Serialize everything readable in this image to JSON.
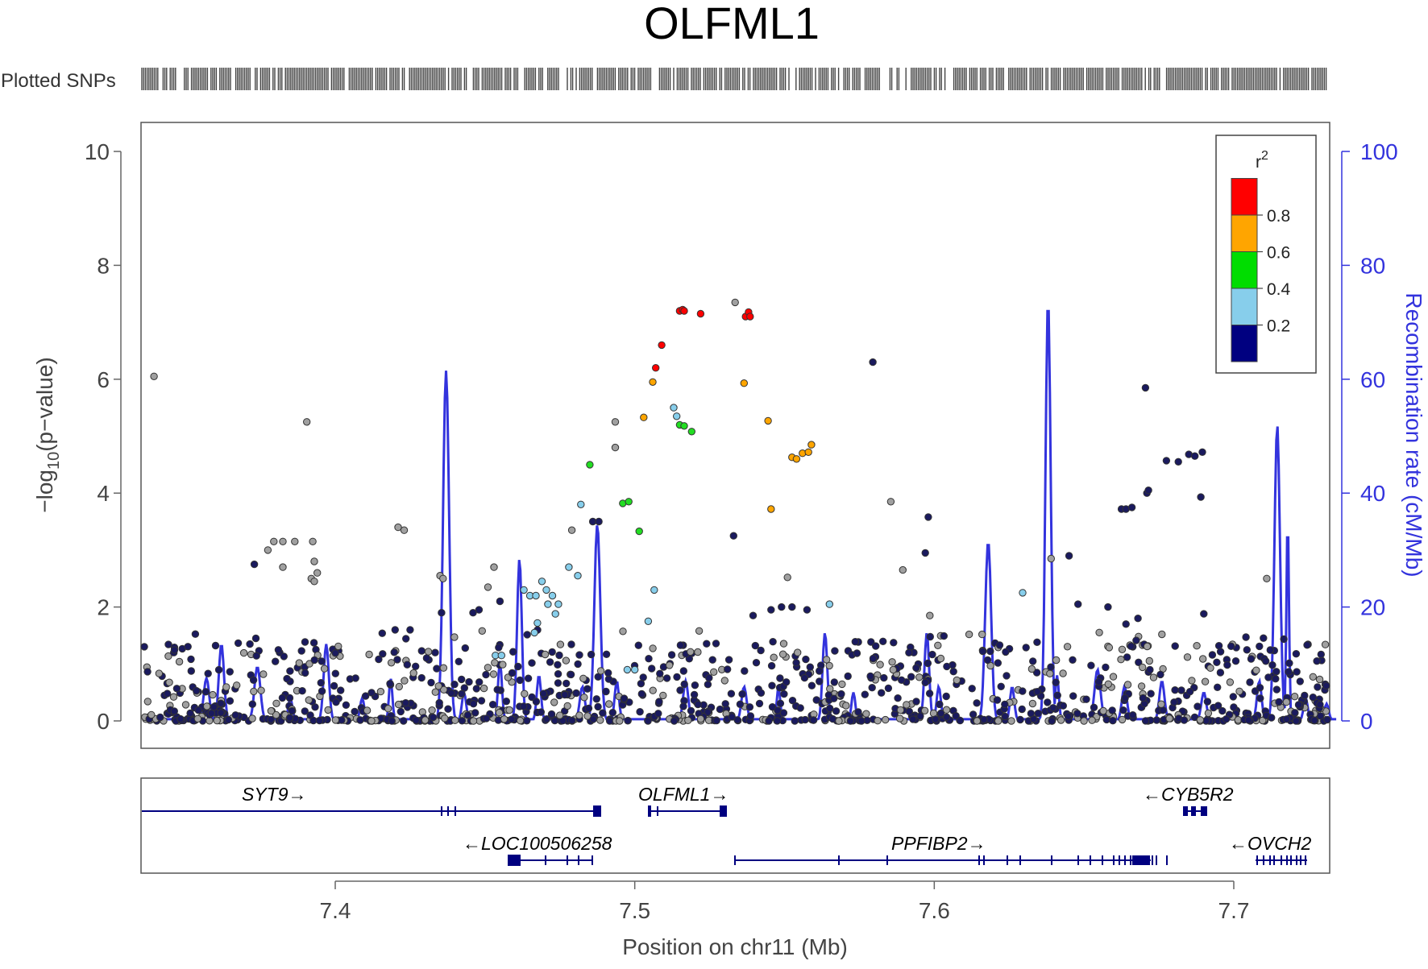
{
  "chart_data": {
    "type": "scatter",
    "title": "OLFML1",
    "snp_track_label": "Plotted SNPs",
    "xlabel": "Position on chr11 (Mb)",
    "ylabel_main": "−log",
    "ylabel_sub": "10",
    "ylabel_tail": "(p−value)",
    "y2label": "Recombination rate (cM/Mb)",
    "xlim": [
      7.335,
      7.735
    ],
    "ylim": [
      0,
      10.5
    ],
    "y2lim": [
      0,
      105
    ],
    "x_ticks": [
      {
        "v": 7.4,
        "label": "7.4"
      },
      {
        "v": 7.5,
        "label": "7.5"
      },
      {
        "v": 7.6,
        "label": "7.6"
      },
      {
        "v": 7.7,
        "label": "7.7"
      }
    ],
    "y_ticks": [
      {
        "v": 0,
        "label": "0"
      },
      {
        "v": 2,
        "label": "2"
      },
      {
        "v": 4,
        "label": "4"
      },
      {
        "v": 6,
        "label": "6"
      },
      {
        "v": 8,
        "label": "8"
      },
      {
        "v": 10,
        "label": "10"
      }
    ],
    "y2_ticks": [
      {
        "v": 0,
        "label": "0"
      },
      {
        "v": 20,
        "label": "20"
      },
      {
        "v": 40,
        "label": "40"
      },
      {
        "v": 60,
        "label": "60"
      },
      {
        "v": 80,
        "label": "80"
      },
      {
        "v": 100,
        "label": "100"
      }
    ],
    "legend": {
      "title": "r",
      "title_sup": "2",
      "placement": "top-right",
      "colors": [
        "#000080",
        "#87ceeb",
        "#00dd00",
        "#ffa500",
        "#ff0000"
      ],
      "labels": [
        "0.2",
        "0.4",
        "0.6",
        "0.8"
      ]
    },
    "r2_colors": {
      "red": "#ff0000",
      "orange": "#ffa500",
      "green": "#22dd22",
      "lightblue": "#87ceeb",
      "navy": "#1a1a5e",
      "gray": "#a0a0a0"
    },
    "recomb_color": "#3333dd",
    "gene_color": "#000080",
    "snps_highlight": [
      {
        "x": 7.3395,
        "y": 6.05,
        "r2": "gray"
      },
      {
        "x": 7.3905,
        "y": 5.25,
        "r2": "gray"
      },
      {
        "x": 7.373,
        "y": 2.75,
        "r2": "navy"
      },
      {
        "x": 7.3775,
        "y": 3.0,
        "r2": "gray"
      },
      {
        "x": 7.3795,
        "y": 3.15,
        "r2": "gray"
      },
      {
        "x": 7.3825,
        "y": 3.15,
        "r2": "gray"
      },
      {
        "x": 7.3865,
        "y": 3.15,
        "r2": "gray"
      },
      {
        "x": 7.3825,
        "y": 2.7,
        "r2": "gray"
      },
      {
        "x": 7.3925,
        "y": 3.15,
        "r2": "gray"
      },
      {
        "x": 7.393,
        "y": 2.8,
        "r2": "gray"
      },
      {
        "x": 7.394,
        "y": 2.6,
        "r2": "gray"
      },
      {
        "x": 7.392,
        "y": 2.5,
        "r2": "gray"
      },
      {
        "x": 7.393,
        "y": 2.45,
        "r2": "gray"
      },
      {
        "x": 7.421,
        "y": 3.4,
        "r2": "gray"
      },
      {
        "x": 7.423,
        "y": 3.35,
        "r2": "gray"
      },
      {
        "x": 7.435,
        "y": 2.55,
        "r2": "gray"
      },
      {
        "x": 7.436,
        "y": 2.5,
        "r2": "gray"
      },
      {
        "x": 7.453,
        "y": 2.7,
        "r2": "gray"
      },
      {
        "x": 7.451,
        "y": 2.35,
        "r2": "gray"
      },
      {
        "x": 7.482,
        "y": 3.8,
        "r2": "lightblue"
      },
      {
        "x": 7.485,
        "y": 4.5,
        "r2": "green"
      },
      {
        "x": 7.486,
        "y": 3.5,
        "r2": "navy"
      },
      {
        "x": 7.488,
        "y": 3.5,
        "r2": "navy"
      },
      {
        "x": 7.479,
        "y": 3.35,
        "r2": "gray"
      },
      {
        "x": 7.481,
        "y": 2.55,
        "r2": "lightblue"
      },
      {
        "x": 7.478,
        "y": 2.7,
        "r2": "lightblue"
      },
      {
        "x": 7.4935,
        "y": 5.25,
        "r2": "gray"
      },
      {
        "x": 7.4935,
        "y": 4.8,
        "r2": "gray"
      },
      {
        "x": 7.496,
        "y": 3.82,
        "r2": "green"
      },
      {
        "x": 7.498,
        "y": 3.85,
        "r2": "green"
      },
      {
        "x": 7.5015,
        "y": 3.33,
        "r2": "green"
      },
      {
        "x": 7.503,
        "y": 5.33,
        "r2": "orange"
      },
      {
        "x": 7.506,
        "y": 5.95,
        "r2": "orange"
      },
      {
        "x": 7.507,
        "y": 6.2,
        "r2": "red"
      },
      {
        "x": 7.509,
        "y": 6.6,
        "r2": "red"
      },
      {
        "x": 7.515,
        "y": 7.2,
        "r2": "red"
      },
      {
        "x": 7.516,
        "y": 7.22,
        "r2": "red"
      },
      {
        "x": 7.5165,
        "y": 7.2,
        "r2": "red"
      },
      {
        "x": 7.522,
        "y": 7.15,
        "r2": "red"
      },
      {
        "x": 7.5335,
        "y": 7.35,
        "r2": "gray"
      },
      {
        "x": 7.537,
        "y": 7.1,
        "r2": "red"
      },
      {
        "x": 7.538,
        "y": 7.18,
        "r2": "red"
      },
      {
        "x": 7.5385,
        "y": 7.1,
        "r2": "red"
      },
      {
        "x": 7.5365,
        "y": 5.93,
        "r2": "orange"
      },
      {
        "x": 7.513,
        "y": 5.5,
        "r2": "lightblue"
      },
      {
        "x": 7.514,
        "y": 5.35,
        "r2": "lightblue"
      },
      {
        "x": 7.515,
        "y": 5.2,
        "r2": "green"
      },
      {
        "x": 7.5165,
        "y": 5.18,
        "r2": "green"
      },
      {
        "x": 7.519,
        "y": 5.08,
        "r2": "green"
      },
      {
        "x": 7.5445,
        "y": 5.27,
        "r2": "orange"
      },
      {
        "x": 7.5525,
        "y": 4.63,
        "r2": "orange"
      },
      {
        "x": 7.554,
        "y": 4.6,
        "r2": "orange"
      },
      {
        "x": 7.556,
        "y": 4.7,
        "r2": "orange"
      },
      {
        "x": 7.558,
        "y": 4.72,
        "r2": "orange"
      },
      {
        "x": 7.559,
        "y": 4.85,
        "r2": "orange"
      },
      {
        "x": 7.5455,
        "y": 3.72,
        "r2": "orange"
      },
      {
        "x": 7.533,
        "y": 3.25,
        "r2": "navy"
      },
      {
        "x": 7.5065,
        "y": 2.3,
        "r2": "lightblue"
      },
      {
        "x": 7.5045,
        "y": 1.75,
        "r2": "lightblue"
      },
      {
        "x": 7.5215,
        "y": 1.58,
        "r2": "gray"
      },
      {
        "x": 7.5795,
        "y": 6.3,
        "r2": "navy"
      },
      {
        "x": 7.5855,
        "y": 3.85,
        "r2": "gray"
      },
      {
        "x": 7.598,
        "y": 3.58,
        "r2": "navy"
      },
      {
        "x": 7.597,
        "y": 2.95,
        "r2": "navy"
      },
      {
        "x": 7.5895,
        "y": 2.65,
        "r2": "gray"
      },
      {
        "x": 7.6295,
        "y": 2.25,
        "r2": "lightblue"
      },
      {
        "x": 7.565,
        "y": 2.05,
        "r2": "lightblue"
      },
      {
        "x": 7.551,
        "y": 2.52,
        "r2": "gray"
      },
      {
        "x": 7.639,
        "y": 2.85,
        "r2": "gray"
      },
      {
        "x": 7.645,
        "y": 2.9,
        "r2": "navy"
      },
      {
        "x": 7.6705,
        "y": 5.85,
        "r2": "navy"
      },
      {
        "x": 7.6625,
        "y": 3.72,
        "r2": "navy"
      },
      {
        "x": 7.664,
        "y": 3.72,
        "r2": "navy"
      },
      {
        "x": 7.666,
        "y": 3.75,
        "r2": "navy"
      },
      {
        "x": 7.671,
        "y": 4.0,
        "r2": "navy"
      },
      {
        "x": 7.6715,
        "y": 4.05,
        "r2": "navy"
      },
      {
        "x": 7.6775,
        "y": 4.57,
        "r2": "navy"
      },
      {
        "x": 7.6815,
        "y": 4.55,
        "r2": "navy"
      },
      {
        "x": 7.685,
        "y": 4.68,
        "r2": "navy"
      },
      {
        "x": 7.687,
        "y": 4.65,
        "r2": "navy"
      },
      {
        "x": 7.6895,
        "y": 4.72,
        "r2": "navy"
      },
      {
        "x": 7.689,
        "y": 3.93,
        "r2": "navy"
      },
      {
        "x": 7.711,
        "y": 2.5,
        "r2": "gray"
      },
      {
        "x": 7.463,
        "y": 2.3,
        "r2": "lightblue"
      },
      {
        "x": 7.465,
        "y": 2.2,
        "r2": "lightblue"
      },
      {
        "x": 7.467,
        "y": 2.2,
        "r2": "lightblue"
      },
      {
        "x": 7.469,
        "y": 2.45,
        "r2": "lightblue"
      },
      {
        "x": 7.4705,
        "y": 2.3,
        "r2": "lightblue"
      },
      {
        "x": 7.471,
        "y": 2.05,
        "r2": "lightblue"
      },
      {
        "x": 7.4725,
        "y": 2.2,
        "r2": "lightblue"
      },
      {
        "x": 7.4745,
        "y": 2.05,
        "r2": "lightblue"
      },
      {
        "x": 7.4735,
        "y": 1.88,
        "r2": "lightblue"
      },
      {
        "x": 7.4665,
        "y": 1.55,
        "r2": "lightblue"
      },
      {
        "x": 7.4675,
        "y": 1.72,
        "r2": "lightblue"
      },
      {
        "x": 7.4535,
        "y": 1.15,
        "r2": "lightblue"
      },
      {
        "x": 7.4555,
        "y": 1.15,
        "r2": "lightblue"
      },
      {
        "x": 7.4975,
        "y": 0.9,
        "r2": "lightblue"
      },
      {
        "x": 7.5,
        "y": 0.9,
        "r2": "lightblue"
      },
      {
        "x": 7.3715,
        "y": 1.35,
        "r2": "navy"
      },
      {
        "x": 7.3735,
        "y": 1.45,
        "r2": "navy"
      },
      {
        "x": 7.42,
        "y": 1.6,
        "r2": "navy"
      },
      {
        "x": 7.425,
        "y": 1.6,
        "r2": "navy"
      },
      {
        "x": 7.4355,
        "y": 1.9,
        "r2": "navy"
      },
      {
        "x": 7.446,
        "y": 1.9,
        "r2": "navy"
      },
      {
        "x": 7.448,
        "y": 1.95,
        "r2": "navy"
      },
      {
        "x": 7.455,
        "y": 2.1,
        "r2": "navy"
      },
      {
        "x": 7.5455,
        "y": 1.95,
        "r2": "navy"
      },
      {
        "x": 7.549,
        "y": 2.0,
        "r2": "navy"
      },
      {
        "x": 7.5525,
        "y": 2.0,
        "r2": "navy"
      },
      {
        "x": 7.5575,
        "y": 1.95,
        "r2": "navy"
      },
      {
        "x": 7.5395,
        "y": 1.85,
        "r2": "navy"
      },
      {
        "x": 7.5985,
        "y": 1.85,
        "r2": "gray"
      },
      {
        "x": 7.648,
        "y": 2.05,
        "r2": "navy"
      },
      {
        "x": 7.658,
        "y": 2.0,
        "r2": "navy"
      },
      {
        "x": 7.664,
        "y": 1.7,
        "r2": "navy"
      },
      {
        "x": 7.668,
        "y": 1.8,
        "r2": "navy"
      },
      {
        "x": 7.676,
        "y": 1.52,
        "r2": "gray"
      },
      {
        "x": 7.69,
        "y": 1.88,
        "r2": "navy"
      }
    ]
  }
}
